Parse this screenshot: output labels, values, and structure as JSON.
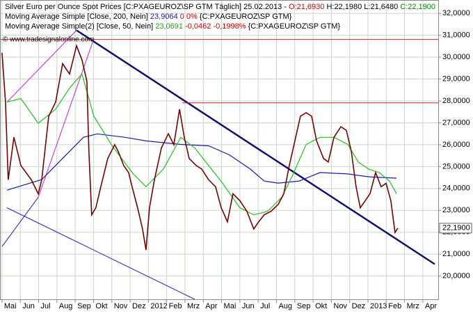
{
  "chart_data": {
    "type": "line",
    "header": {
      "line1_date": "25.02.2013 -",
      "open": "O:21,6930",
      "high_low": "H:22,1980 L:21,6480",
      "close": "C:22,1900",
      "ma200_value": "23,9064",
      "ma200_change": "0 0%",
      "ma200_source": "{C:PXAGEUROZ\\SP GTM}",
      "ma50_value": "23,0691",
      "ma50_change": "-0,0462 -0,1998%",
      "ma50_source": "{C:PXAGEUROZ\\SP GTM}",
      "watermark": "© www.tradesignalonline.com"
    },
    "xlim": [
      -0.11,
      23.84
    ],
    "ylim": [
      18940,
      32610
    ],
    "grid": true,
    "xticks": [
      {
        "value": 0,
        "label": "Mai"
      },
      {
        "value": 1,
        "label": "Jun"
      },
      {
        "value": 2,
        "label": "Jul"
      },
      {
        "value": 3,
        "label": "Aug"
      },
      {
        "value": 4,
        "label": "Sep"
      },
      {
        "value": 5,
        "label": "Okt"
      },
      {
        "value": 6,
        "label": "Nov"
      },
      {
        "value": 7,
        "label": "Dez"
      },
      {
        "value": 8,
        "label": "2012"
      },
      {
        "value": 9,
        "label": "Feb"
      },
      {
        "value": 10,
        "label": "Mrz"
      },
      {
        "value": 11,
        "label": "Apr"
      },
      {
        "value": 12,
        "label": "Mai"
      },
      {
        "value": 13,
        "label": "Jun"
      },
      {
        "value": 14,
        "label": "Jul"
      },
      {
        "value": 15,
        "label": "Aug"
      },
      {
        "value": 16,
        "label": "Sep"
      },
      {
        "value": 17,
        "label": "Okt"
      },
      {
        "value": 18,
        "label": "Nov"
      },
      {
        "value": 19,
        "label": "Dez"
      },
      {
        "value": 20,
        "label": "2013"
      },
      {
        "value": 21,
        "label": "Feb"
      },
      {
        "value": 22,
        "label": "Mrz"
      },
      {
        "value": 23,
        "label": "Apr"
      }
    ],
    "yticks": [
      {
        "value": 20000,
        "label": "20,0000"
      },
      {
        "value": 21000,
        "label": "21,0000"
      },
      {
        "value": 22000,
        "label": "22,0000"
      },
      {
        "value": 23000,
        "label": "23,0000"
      },
      {
        "value": 24000,
        "label": "24,0000"
      },
      {
        "value": 25000,
        "label": "25,0000"
      },
      {
        "value": 26000,
        "label": "26,0000"
      },
      {
        "value": 27000,
        "label": "27,0000"
      },
      {
        "value": 28000,
        "label": "28,0000"
      },
      {
        "value": 29000,
        "label": "29,0000"
      },
      {
        "value": 30000,
        "label": "30,0000"
      },
      {
        "value": 31000,
        "label": "31,0000"
      },
      {
        "value": 32000,
        "label": "32,0000"
      }
    ],
    "last_price": {
      "value": 22190,
      "label": "22,1900"
    },
    "series": [
      {
        "name": "Silver Euro per Ounce Spot Prices [C:PXAGEUROZ\\SP GTM  Täglich]",
        "color": "#7a0000",
        "x": [
          0,
          0.19,
          0.34,
          0.65,
          1.03,
          1.6,
          1.98,
          2.17,
          2.55,
          2.93,
          3.31,
          3.69,
          4.07,
          4.37,
          4.64,
          4.75,
          4.9,
          5.13,
          5.4,
          5.78,
          6.16,
          6.35,
          6.65,
          6.92,
          7.11,
          7.41,
          7.68,
          7.87,
          8.06,
          8.33,
          8.71,
          9.09,
          9.39,
          9.7,
          9.96,
          10.23,
          10.61,
          10.91,
          11.29,
          11.67,
          11.98,
          12.32,
          12.62,
          13.0,
          13.38,
          13.76,
          14.03,
          14.33,
          14.71,
          15.1,
          15.4,
          15.7,
          16.05,
          16.31,
          16.62,
          16.92,
          17.19,
          17.57,
          17.83,
          18.14,
          18.52,
          18.82,
          19.09,
          19.35,
          19.58,
          19.85,
          20.11,
          20.42,
          20.72,
          20.99,
          21.25,
          21.48,
          21.63
        ],
        "values": [
          30200,
          27950,
          24400,
          26340,
          25050,
          24400,
          23760,
          24400,
          27300,
          27950,
          29700,
          29230,
          30520,
          29880,
          28900,
          25700,
          22800,
          23120,
          24080,
          25370,
          26000,
          25700,
          25050,
          24730,
          24080,
          23120,
          22150,
          21190,
          23120,
          24400,
          25850,
          26500,
          26000,
          27620,
          26340,
          25370,
          25050,
          24890,
          24400,
          24080,
          23120,
          22480,
          23760,
          23440,
          22960,
          22150,
          22480,
          22800,
          22960,
          23280,
          23760,
          25050,
          26340,
          27300,
          27460,
          27300,
          26180,
          25370,
          25210,
          26340,
          26820,
          26660,
          25690,
          24080,
          23120,
          23440,
          23760,
          24730,
          24080,
          24240,
          23440,
          21990,
          22190
        ]
      },
      {
        "name": "Moving Average Simple [Close, 200, Nein]",
        "color": "#1a1ab0",
        "x": [
          0.27,
          2.17,
          4.45,
          5.21,
          6.73,
          7.87,
          9.77,
          11.29,
          12.43,
          13.57,
          14.33,
          15.1,
          16.24,
          17.38,
          18.9,
          20.04,
          21.56
        ],
        "values": [
          23924,
          24407,
          26337,
          26498,
          26337,
          26176,
          26015,
          25951,
          25533,
          24889,
          24342,
          24246,
          24342,
          24728,
          24664,
          24535,
          24471
        ]
      },
      {
        "name": "Moving Average Simple(2) [Close, 50, Nein]",
        "color": "#22c022",
        "x": [
          0.27,
          1.03,
          1.98,
          2.93,
          3.69,
          4.37,
          5.02,
          5.97,
          7.11,
          7.87,
          8.82,
          9.77,
          10.53,
          11.29,
          12.05,
          13.0,
          13.76,
          14.52,
          15.29,
          15.86,
          16.62,
          17.38,
          18.14,
          18.9,
          19.47,
          20.04,
          20.61,
          21.18,
          21.56
        ],
        "values": [
          27946,
          28107,
          26981,
          27624,
          28589,
          29233,
          27302,
          26015,
          24728,
          24085,
          24889,
          26337,
          25854,
          25050,
          24246,
          23120,
          22798,
          22960,
          23603,
          24568,
          26015,
          26337,
          26337,
          26015,
          25211,
          24889,
          24728,
          24342,
          23763
        ]
      }
    ],
    "trendlines": [
      {
        "color": "#10106a",
        "x": [
          4.07,
          23.65
        ],
        "values": [
          31228,
          20546
        ]
      },
      {
        "color": "#d02020",
        "x": [
          -0.11,
          23.84
        ],
        "values": [
          30810,
          30810
        ]
      },
      {
        "color": "#d02020",
        "x": [
          9.85,
          23.84
        ],
        "values": [
          27914,
          27914
        ]
      },
      {
        "color": "#d020d0",
        "x": [
          1.98,
          5.02
        ],
        "values": [
          23602,
          30842
        ]
      },
      {
        "color": "#d020d0",
        "x": [
          0.27,
          4.07
        ],
        "values": [
          27946,
          31228
        ]
      },
      {
        "color": "#2020c0",
        "x": [
          0,
          1.98
        ],
        "values": [
          21350,
          23602
        ]
      },
      {
        "color": "#2020c0",
        "x": [
          0.27,
          10.53
        ],
        "values": [
          23120,
          18940
        ]
      }
    ]
  }
}
